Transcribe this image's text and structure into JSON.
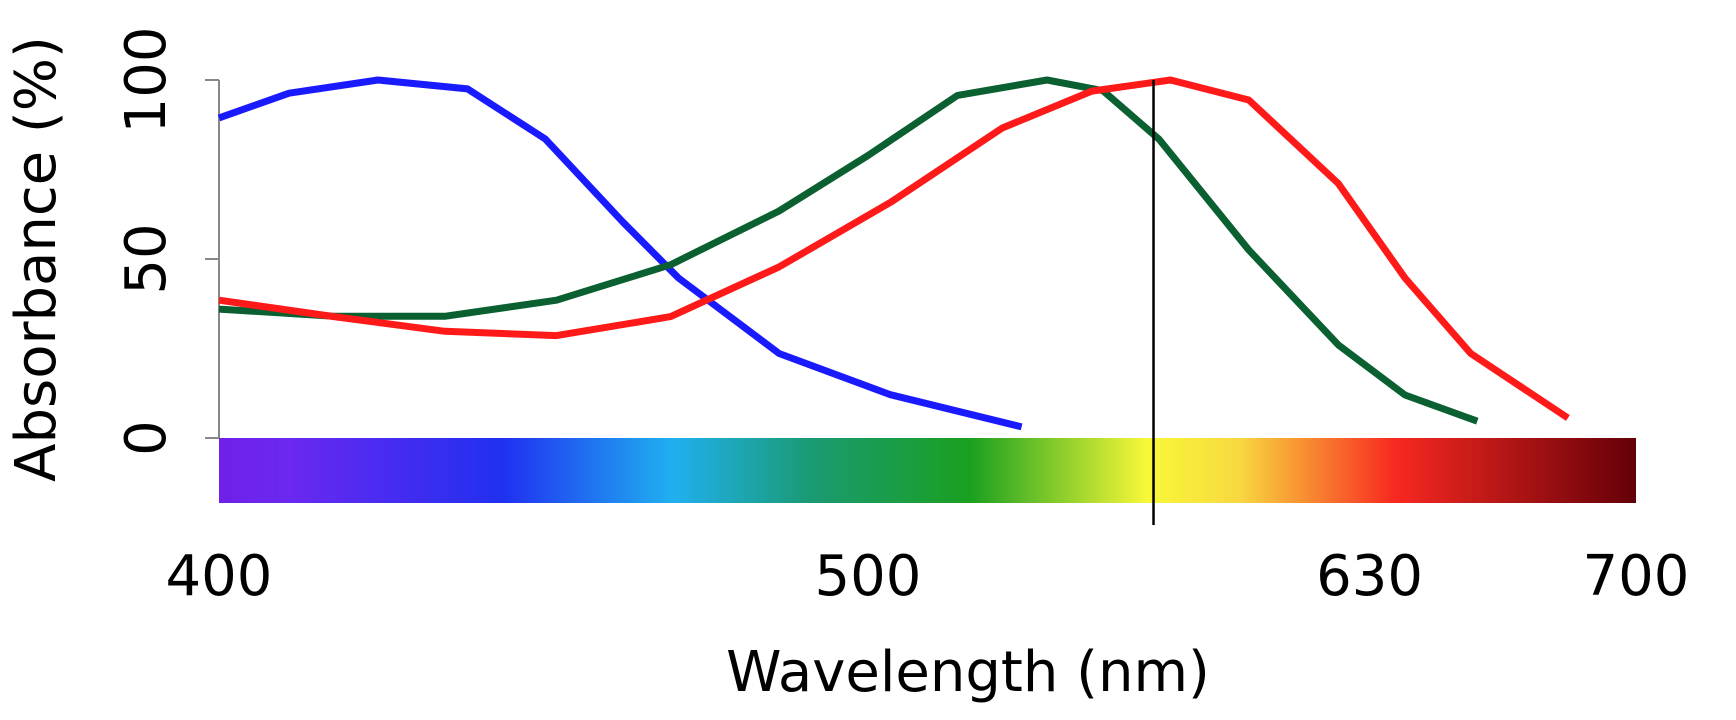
{
  "chart_data": {
    "type": "line",
    "xlabel": "Wavelength (nm)",
    "ylabel": "Absorbance (%)",
    "xlim": [
      400,
      700
    ],
    "xticks": [
      400,
      500,
      630,
      700
    ],
    "ylim": [
      0,
      100
    ],
    "yticks": [
      0,
      50,
      100
    ],
    "vline": 574,
    "series": [
      {
        "color": "#1a1aff",
        "x": [
          400,
          410.8,
          424.5,
          438.3,
          450.3,
          462.3,
          470.8,
          486.3,
          505.8,
          539.8
        ],
        "values": [
          89.4,
          96.3,
          100,
          97.5,
          83.5,
          60.2,
          44.7,
          23.6,
          12.1,
          3.1
        ]
      },
      {
        "color": "#0a6030",
        "x": [
          400,
          417.7,
          434.8,
          452,
          469.6,
          486.3,
          500,
          523.2,
          546.4,
          560.9,
          575.4,
          598.7,
          621.9,
          639.3,
          658.3
        ],
        "values": [
          36,
          34,
          34,
          38.5,
          48.4,
          63.4,
          78.9,
          95.7,
          100,
          97,
          83.5,
          52.5,
          26,
          12,
          4.7
        ]
      },
      {
        "color": "#ff1a1a",
        "x": [
          400,
          417.7,
          434.8,
          452,
          469.6,
          486.3,
          505.8,
          534.8,
          558,
          578.4,
          598.7,
          621.9,
          639.3,
          656.6,
          682.1
        ],
        "values": [
          38.5,
          33.9,
          29.8,
          28.6,
          33.9,
          47.8,
          65.8,
          86.6,
          96.9,
          100,
          94.4,
          71.1,
          44.7,
          23.6,
          5.6
        ]
      }
    ]
  }
}
